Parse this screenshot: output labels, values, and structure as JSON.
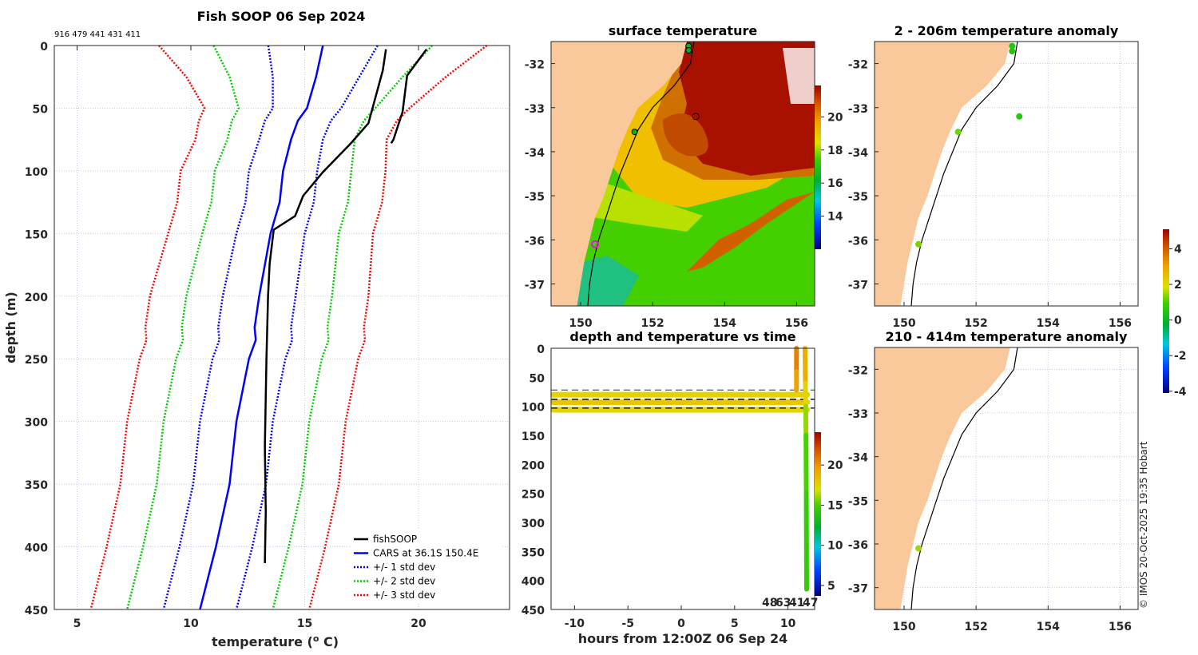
{
  "profile_panel": {
    "title": "Fish SOOP 06 Sep 2024",
    "cast_ids": "916 479 441 431 411",
    "xlabel": "temperature (",
    "xlabel_sup": "o",
    "xlabel_end": " C)",
    "ylabel": "depth (m)",
    "legend": [
      "fishSOOP",
      "CARS at 36.1S 150.4E",
      "+/- 1 std dev",
      "+/- 2 std dev",
      "+/- 3 std dev"
    ]
  },
  "sst_panel": {
    "title": "surface temperature"
  },
  "depth_time_panel": {
    "title": "depth and temperature vs time",
    "xlabel": "hours from 12:00Z 06 Sep 24",
    "end_labels": [
      "48",
      "63",
      "41",
      "47"
    ]
  },
  "anom_top_panel": {
    "title": "2 - 206m temperature anomaly"
  },
  "anom_bottom_panel": {
    "title": "210 - 414m temperature anomaly"
  },
  "credit": "© IMOS 20-Oct-2025 19:35 Hobart",
  "colors": {
    "fish": "#000000",
    "cars": "#0000ff",
    "std1": "#0000ff",
    "std2": "#00cc00",
    "std3": "#ff0000",
    "land": "#f9c89b"
  },
  "chart_data": [
    {
      "type": "line",
      "title": "Fish SOOP 06 Sep 2024",
      "xlabel": "temperature (o C)",
      "ylabel": "depth (m)",
      "xlim": [
        4,
        24
      ],
      "ylim": [
        450,
        0
      ],
      "xticks": [
        5,
        10,
        15,
        20
      ],
      "yticks": [
        0,
        50,
        100,
        150,
        200,
        250,
        300,
        350,
        400,
        450
      ],
      "legend_position": "bottom-right",
      "cars_depth": [
        0,
        25,
        50,
        60,
        75,
        100,
        125,
        150,
        175,
        200,
        225,
        235,
        250,
        300,
        350,
        400,
        450
      ],
      "cars_mean": [
        15.8,
        15.5,
        15.1,
        14.7,
        14.4,
        14.05,
        13.9,
        13.5,
        13.25,
        13.0,
        12.8,
        12.85,
        12.55,
        12.0,
        11.7,
        11.1,
        10.4
      ],
      "cars_std": [
        2.4,
        1.9,
        1.5,
        1.45,
        1.4,
        1.5,
        1.5,
        1.5,
        1.55,
        1.6,
        1.6,
        1.6,
        1.6,
        1.6,
        1.6,
        1.6,
        1.6
      ],
      "fishsoop": [
        {
          "temp": [
            18.57,
            18.43,
            17.8,
            17.03,
            15.8,
            14.93,
            14.58,
            13.64,
            13.46,
            13.39,
            13.32,
            13.25,
            13.29,
            13.25
          ],
          "depth": [
            3,
            20,
            62,
            78,
            101,
            120,
            136,
            147,
            174,
            200,
            250,
            320,
            372,
            413
          ]
        },
        {
          "temp": [
            20.35,
            19.5,
            19.3,
            18.9,
            18.8
          ],
          "depth": [
            3,
            24,
            53,
            75,
            78
          ]
        }
      ]
    },
    {
      "type": "heatmap",
      "title": "surface temperature",
      "xlim": [
        149.2,
        156.5
      ],
      "ylim": [
        -37.5,
        -31.5
      ],
      "xticks": [
        150,
        152,
        154,
        156
      ],
      "yticks": [
        -32,
        -33,
        -34,
        -35,
        -36,
        -37
      ],
      "colorbar": {
        "range": [
          12,
          21.9
        ],
        "ticks": [
          14,
          16,
          18,
          20
        ]
      },
      "stations": [
        {
          "lon": 153.0,
          "lat": -31.6
        },
        {
          "lon": 153.0,
          "lat": -31.7
        },
        {
          "lon": 151.5,
          "lat": -33.55
        },
        {
          "lon": 153.2,
          "lat": -33.2
        },
        {
          "lon": 150.4,
          "lat": -36.1
        }
      ]
    },
    {
      "type": "scatter",
      "title": "depth and temperature vs time",
      "xlabel": "hours from 12:00Z 06 Sep 24",
      "xlim": [
        -12.2,
        12.5
      ],
      "ylim": [
        450,
        0
      ],
      "xticks": [
        -10,
        -5,
        0,
        5,
        10
      ],
      "yticks": [
        0,
        50,
        100,
        150,
        200,
        250,
        300,
        350,
        400,
        450
      ],
      "colorbar": {
        "range": [
          3.7,
          24.1
        ],
        "ticks": [
          5,
          10,
          15,
          20
        ]
      },
      "dashed_depths": [
        72,
        88,
        103
      ],
      "tows": [
        {
          "depth": 80,
          "temp": 17.5
        },
        {
          "depth": 93,
          "temp": 18.0
        },
        {
          "depth": 106,
          "temp": 17.5
        }
      ],
      "profiles": [
        {
          "hour": 11.6,
          "depth": [
            0,
            60,
            100,
            150,
            250,
            415
          ],
          "temp": [
            19.5,
            19.0,
            17.5,
            16.0,
            15.0,
            14.5
          ]
        },
        {
          "hour": 10.8,
          "depth": [
            0,
            40,
            72
          ],
          "temp": [
            21.0,
            20.5,
            19.5
          ]
        }
      ]
    },
    {
      "type": "scatter",
      "title": "2 - 206m temperature anomaly",
      "xlim": [
        149.2,
        156.5
      ],
      "ylim": [
        -37.5,
        -31.5
      ],
      "xticks": [
        150,
        152,
        154,
        156
      ],
      "yticks": [
        -32,
        -33,
        -34,
        -35,
        -36,
        -37
      ],
      "colorbar": {
        "range": [
          -4.1,
          5.1
        ],
        "ticks": [
          -4,
          -2,
          0,
          2,
          4
        ]
      },
      "points": [
        {
          "lon": 153.0,
          "lat": -31.6,
          "anom": 0.5
        },
        {
          "lon": 153.0,
          "lat": -31.72,
          "anom": 0.5
        },
        {
          "lon": 153.2,
          "lat": -33.2,
          "anom": 0.5
        },
        {
          "lon": 151.5,
          "lat": -33.55,
          "anom": 1.2
        },
        {
          "lon": 150.4,
          "lat": -36.1,
          "anom": 1.3
        }
      ]
    },
    {
      "type": "scatter",
      "title": "210 - 414m temperature anomaly",
      "xlim": [
        149.2,
        156.5
      ],
      "ylim": [
        -37.5,
        -31.5
      ],
      "xticks": [
        150,
        152,
        154,
        156
      ],
      "yticks": [
        -32,
        -33,
        -34,
        -35,
        -36,
        -37
      ],
      "points": [
        {
          "lon": 150.4,
          "lat": -36.1,
          "anom": 1.5
        }
      ]
    }
  ]
}
